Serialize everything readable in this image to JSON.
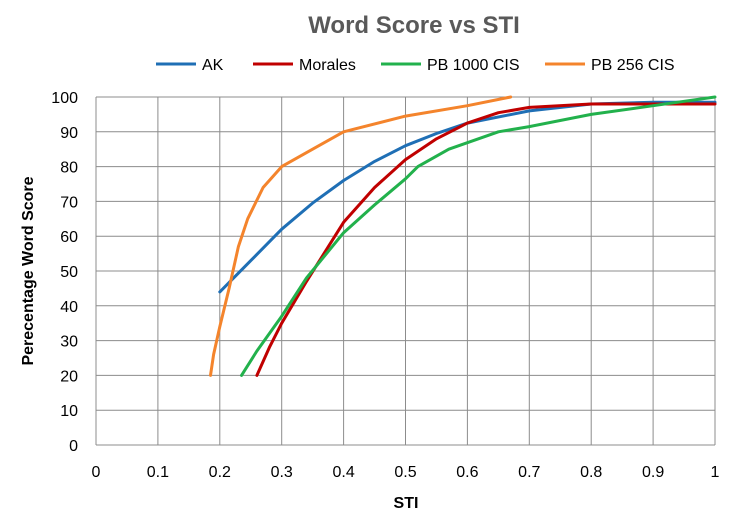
{
  "chart_data": {
    "type": "line",
    "title": "Word Score vs STI",
    "xlabel": "STI",
    "ylabel": "Perecentage Word Score",
    "xlim": [
      0,
      1
    ],
    "ylim": [
      0,
      100
    ],
    "xticks": [
      "0",
      "0.1",
      "0.2",
      "0.3",
      "0.4",
      "0.5",
      "0.6",
      "0.7",
      "0.8",
      "0.9",
      "1"
    ],
    "yticks": [
      "0",
      "10",
      "20",
      "30",
      "40",
      "50",
      "60",
      "70",
      "80",
      "90",
      "100"
    ],
    "grid": true,
    "legend_position": "top",
    "series": [
      {
        "name": "AK",
        "color": "#1F6FB5",
        "points": [
          [
            0.2,
            44
          ],
          [
            0.25,
            53
          ],
          [
            0.3,
            62
          ],
          [
            0.35,
            69.5
          ],
          [
            0.4,
            76
          ],
          [
            0.45,
            81.5
          ],
          [
            0.5,
            86
          ],
          [
            0.55,
            89.5
          ],
          [
            0.6,
            92.5
          ],
          [
            0.7,
            96
          ],
          [
            0.8,
            98
          ],
          [
            0.9,
            98.5
          ],
          [
            1.0,
            98.5
          ]
        ]
      },
      {
        "name": "Morales",
        "color": "#C00000",
        "points": [
          [
            0.26,
            20
          ],
          [
            0.28,
            28
          ],
          [
            0.3,
            35
          ],
          [
            0.34,
            47
          ],
          [
            0.4,
            64
          ],
          [
            0.45,
            74
          ],
          [
            0.5,
            82
          ],
          [
            0.55,
            88
          ],
          [
            0.6,
            92.5
          ],
          [
            0.65,
            95.5
          ],
          [
            0.7,
            97
          ],
          [
            0.8,
            98
          ],
          [
            0.9,
            98
          ],
          [
            1.0,
            98
          ]
        ]
      },
      {
        "name": "PB 1000 CIS",
        "color": "#22B14C",
        "points": [
          [
            0.235,
            20
          ],
          [
            0.26,
            27
          ],
          [
            0.3,
            37
          ],
          [
            0.34,
            48
          ],
          [
            0.4,
            61
          ],
          [
            0.45,
            69
          ],
          [
            0.5,
            76.5
          ],
          [
            0.52,
            80
          ],
          [
            0.57,
            85
          ],
          [
            0.65,
            90
          ],
          [
            0.7,
            91.5
          ],
          [
            0.8,
            95
          ],
          [
            0.9,
            97.5
          ],
          [
            1.0,
            100
          ]
        ]
      },
      {
        "name": "PB 256 CIS",
        "color": "#F4842C",
        "points": [
          [
            0.185,
            20
          ],
          [
            0.19,
            26
          ],
          [
            0.2,
            34
          ],
          [
            0.215,
            45
          ],
          [
            0.23,
            57
          ],
          [
            0.245,
            65
          ],
          [
            0.27,
            74
          ],
          [
            0.3,
            80
          ],
          [
            0.35,
            85
          ],
          [
            0.4,
            90
          ],
          [
            0.5,
            94.5
          ],
          [
            0.6,
            97.5
          ],
          [
            0.67,
            100
          ]
        ]
      }
    ]
  }
}
